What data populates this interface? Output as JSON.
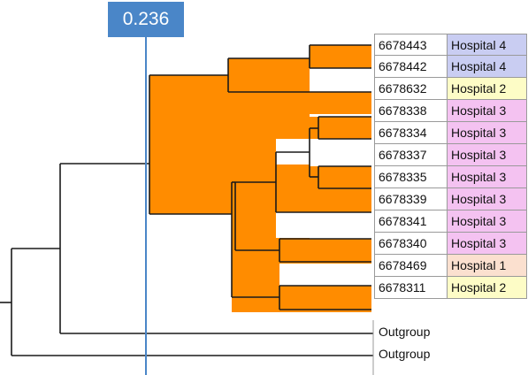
{
  "threshold": {
    "label": "0.236"
  },
  "colors": {
    "clade_fill": "#ff8c00",
    "threshold_line": "#4a86c8",
    "hospital_4": "#c9cdf2",
    "hospital_2": "#fdfcc6",
    "hospital_3": "#f4c2f1",
    "hospital_1": "#fbe0cf"
  },
  "tips": [
    {
      "id": "6678443",
      "hospital": "Hospital 4",
      "color": "#c9cdf2"
    },
    {
      "id": "6678442",
      "hospital": "Hospital 4",
      "color": "#c9cdf2"
    },
    {
      "id": "6678632",
      "hospital": "Hospital 2",
      "color": "#fdfcc6"
    },
    {
      "id": "6678338",
      "hospital": "Hospital 3",
      "color": "#f4c2f1"
    },
    {
      "id": "6678334",
      "hospital": "Hospital 3",
      "color": "#f4c2f1"
    },
    {
      "id": "6678337",
      "hospital": "Hospital 3",
      "color": "#f4c2f1"
    },
    {
      "id": "6678335",
      "hospital": "Hospital 3",
      "color": "#f4c2f1"
    },
    {
      "id": "6678339",
      "hospital": "Hospital 3",
      "color": "#f4c2f1"
    },
    {
      "id": "6678341",
      "hospital": "Hospital 3",
      "color": "#f4c2f1"
    },
    {
      "id": "6678340",
      "hospital": "Hospital 3",
      "color": "#f4c2f1"
    },
    {
      "id": "6678469",
      "hospital": "Hospital 1",
      "color": "#fbe0cf"
    },
    {
      "id": "6678311",
      "hospital": "Hospital 2",
      "color": "#fdfcc6"
    }
  ],
  "outgroups": [
    "Outgroup",
    "Outgroup"
  ]
}
